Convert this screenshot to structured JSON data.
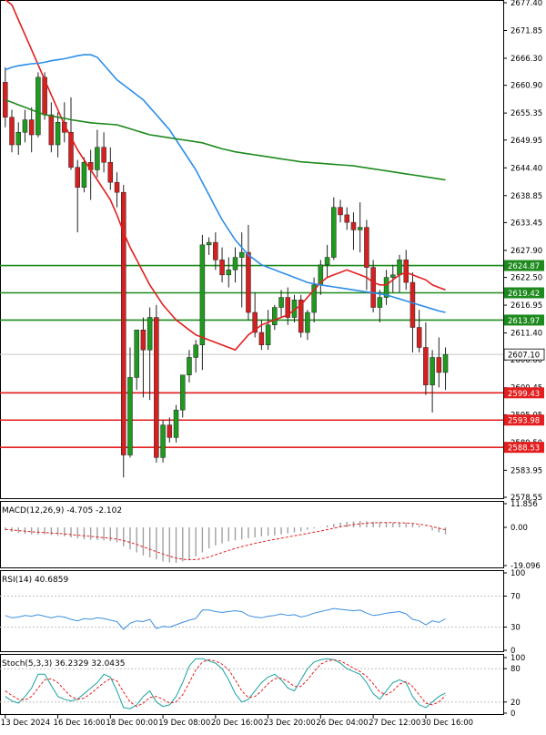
{
  "chart_data": {
    "type": "candlestick",
    "price_panel": {
      "ylim": [
        2578.55,
        2677.4
      ],
      "y_ticks": [
        "2677.40",
        "2671.85",
        "2666.30",
        "2660.90",
        "2655.35",
        "2649.95",
        "2644.40",
        "2638.85",
        "2633.45",
        "2627.90",
        "2622.50",
        "2616.95",
        "2611.40",
        "2606.00",
        "2600.45",
        "2595.05",
        "2589.50",
        "2583.95",
        "2578.55"
      ],
      "current_price": "2607.10",
      "x_ticks": [
        {
          "i": 0,
          "label": "13 Dec 2024"
        },
        {
          "i": 8,
          "label": "16 Dec 16:00"
        },
        {
          "i": 16,
          "label": "18 Dec 00:00"
        },
        {
          "i": 24,
          "label": "19 Dec 08:00"
        },
        {
          "i": 32,
          "label": "20 Dec 16:00"
        },
        {
          "i": 40,
          "label": "23 Dec 20:00"
        },
        {
          "i": 48,
          "label": "26 Dec 04:00"
        },
        {
          "i": 56,
          "label": "27 Dec 12:00"
        },
        {
          "i": 64,
          "label": "30 Dec 16:00"
        }
      ],
      "ohlc": [
        [
          2661.5,
          2664.5,
          2652.5,
          2654.5
        ],
        [
          2654.5,
          2656,
          2647.5,
          2649
        ],
        [
          2649,
          2653.5,
          2647,
          2651.5
        ],
        [
          2651.5,
          2656,
          2649.5,
          2654
        ],
        [
          2654,
          2656.5,
          2647.5,
          2651
        ],
        [
          2651,
          2663.5,
          2650.5,
          2662.5
        ],
        [
          2662.5,
          2663.5,
          2654,
          2655
        ],
        [
          2655,
          2657.5,
          2647.5,
          2649
        ],
        [
          2649,
          2655.5,
          2646.5,
          2653.5
        ],
        [
          2653.5,
          2657.5,
          2649.5,
          2651.5
        ],
        [
          2651.5,
          2658.5,
          2644,
          2644.5
        ],
        [
          2644.5,
          2646,
          2631.5,
          2640.5
        ],
        [
          2640.5,
          2646.5,
          2639.5,
          2645.5
        ],
        [
          2645.5,
          2648,
          2638,
          2644
        ],
        [
          2644,
          2652,
          2642.5,
          2648.5
        ],
        [
          2648.5,
          2651.5,
          2643.5,
          2645.5
        ],
        [
          2645.5,
          2648.5,
          2640,
          2641.5
        ],
        [
          2641.5,
          2643.5,
          2636.5,
          2639.5
        ],
        [
          2639.5,
          2641,
          2582.5,
          2587
        ],
        [
          2587,
          2608.5,
          2586.5,
          2602.5
        ],
        [
          2602.5,
          2612,
          2600,
          2612
        ],
        [
          2612,
          2614.5,
          2598.5,
          2608
        ],
        [
          2608,
          2616.5,
          2598,
          2614.5
        ],
        [
          2614.5,
          2617,
          2585.5,
          2586.5
        ],
        [
          2586.5,
          2594,
          2585.5,
          2593
        ],
        [
          2593,
          2594.5,
          2589.5,
          2590.5
        ],
        [
          2590.5,
          2597,
          2589.5,
          2596
        ],
        [
          2596,
          2603,
          2594.5,
          2603
        ],
        [
          2603,
          2608,
          2601.5,
          2606.5
        ],
        [
          2606.5,
          2610,
          2603.5,
          2609
        ],
        [
          2609,
          2631,
          2604,
          2629
        ],
        [
          2629,
          2630.5,
          2627,
          2629.5
        ],
        [
          2629.5,
          2631.5,
          2624,
          2626
        ],
        [
          2626,
          2628.5,
          2621.5,
          2623
        ],
        [
          2623,
          2626.5,
          2620.5,
          2624
        ],
        [
          2624,
          2628.5,
          2621.5,
          2626.5
        ],
        [
          2626.5,
          2631.5,
          2616.5,
          2627.5
        ],
        [
          2627.5,
          2633,
          2614,
          2615.5
        ],
        [
          2615.5,
          2619.5,
          2610.5,
          2611.5
        ],
        [
          2611.5,
          2614,
          2608,
          2609
        ],
        [
          2609,
          2616,
          2608,
          2613
        ],
        [
          2613,
          2617,
          2612,
          2616.5
        ],
        [
          2616.5,
          2620,
          2614.5,
          2618.5
        ],
        [
          2618.5,
          2620.5,
          2613,
          2614.5
        ],
        [
          2614.5,
          2619,
          2613.5,
          2618
        ],
        [
          2618,
          2619,
          2610.5,
          2611.5
        ],
        [
          2611.5,
          2616,
          2610,
          2615.5
        ],
        [
          2615.5,
          2622.5,
          2613.5,
          2621
        ],
        [
          2621,
          2626,
          2619,
          2625
        ],
        [
          2625,
          2629,
          2622.5,
          2626.5
        ],
        [
          2626.5,
          2638.5,
          2626,
          2636.5
        ],
        [
          2636.5,
          2638,
          2633.5,
          2635
        ],
        [
          2635,
          2636.5,
          2632,
          2633.5
        ],
        [
          2633.5,
          2635.5,
          2628,
          2632
        ],
        [
          2632,
          2637.5,
          2627.5,
          2632.5
        ],
        [
          2632.5,
          2634,
          2620,
          2624.5
        ],
        [
          2624.5,
          2626,
          2615.5,
          2616.5
        ],
        [
          2616.5,
          2620,
          2613.5,
          2618.5
        ],
        [
          2618.5,
          2624,
          2617,
          2622.5
        ],
        [
          2622.5,
          2625,
          2619.5,
          2623
        ],
        [
          2623,
          2627,
          2619.5,
          2626
        ],
        [
          2626,
          2628,
          2620,
          2621.5
        ],
        [
          2621.5,
          2623.5,
          2607.5,
          2612.5
        ],
        [
          2612.5,
          2616,
          2607.5,
          2608.5
        ],
        [
          2608.5,
          2613.5,
          2599,
          2601
        ],
        [
          2601,
          2608,
          2595.5,
          2606.5
        ],
        [
          2606.5,
          2610.5,
          2600.5,
          2603.5
        ],
        [
          2603.5,
          2608.5,
          2600,
          2607.1
        ]
      ],
      "moving_averages": [
        {
          "color": "#e41e1e",
          "values": [
            2678,
            2677,
            2674,
            2671,
            2668,
            2665,
            2662,
            2659,
            2656,
            2653,
            2650.5,
            2648,
            2646,
            2644,
            2642,
            2640,
            2638,
            2635,
            2631.5,
            2628.5,
            2626,
            2623.5,
            2621,
            2619,
            2617,
            2615.5,
            2614,
            2613,
            2612,
            2611,
            2610.5,
            2610,
            2609.5,
            2609,
            2608.5,
            2608,
            2609.5,
            2611,
            2612,
            2613,
            2613.5,
            2614,
            2614.5,
            2615,
            2616,
            2617,
            2618.5,
            2620,
            2621.5,
            2622.5,
            2623,
            2623.5,
            2624,
            2623.5,
            2623,
            2622.5,
            2621.5,
            2621,
            2621,
            2622,
            2623,
            2623.5,
            2623,
            2622.5,
            2622,
            2621,
            2620.5,
            2620
          ]
        },
        {
          "color": "#2d8ee8",
          "values": [
            2664,
            2664.5,
            2664.8,
            2665,
            2665.2,
            2665.3,
            2665.5,
            2665.8,
            2666,
            2666.2,
            2666.5,
            2666.8,
            2667,
            2667,
            2666.5,
            2665,
            2663.5,
            2662,
            2661,
            2660,
            2659,
            2658,
            2656.5,
            2655,
            2653.5,
            2652,
            2650,
            2648,
            2646,
            2644,
            2641.5,
            2639,
            2636.5,
            2634,
            2632,
            2630,
            2628.5,
            2627,
            2626,
            2625,
            2624.5,
            2624,
            2623.5,
            2623,
            2622.5,
            2622,
            2621.5,
            2621.2,
            2621,
            2620.8,
            2620.6,
            2620.4,
            2620.2,
            2620,
            2619.8,
            2619.6,
            2619.4,
            2619.2,
            2619,
            2618.6,
            2618.2,
            2617.8,
            2617.4,
            2617,
            2616.6,
            2616.2,
            2615.8,
            2615.5
          ]
        },
        {
          "color": "#1e8a1e",
          "values": [
            2658,
            2657.5,
            2657,
            2656.5,
            2656,
            2655.5,
            2655,
            2654.8,
            2654.5,
            2654.3,
            2654,
            2653.8,
            2653.6,
            2653.4,
            2653.3,
            2653.2,
            2653.1,
            2653,
            2652.6,
            2652.2,
            2651.8,
            2651.4,
            2651,
            2650.8,
            2650.6,
            2650.4,
            2650.2,
            2650,
            2649.8,
            2649.6,
            2649.4,
            2649,
            2648.6,
            2648.2,
            2647.9,
            2647.6,
            2647.4,
            2647.2,
            2647,
            2646.8,
            2646.6,
            2646.4,
            2646.2,
            2646,
            2645.8,
            2645.6,
            2645.5,
            2645.4,
            2645.3,
            2645.2,
            2645.1,
            2645,
            2644.9,
            2644.8,
            2644.6,
            2644.4,
            2644.2,
            2644,
            2643.8,
            2643.6,
            2643.4,
            2643.2,
            2643,
            2642.8,
            2642.6,
            2642.4,
            2642.2,
            2642
          ]
        }
      ],
      "h_lines": [
        {
          "value": 2624.87,
          "label": "2624.87",
          "color": "#1e8a1e"
        },
        {
          "value": 2619.42,
          "label": "2619.42",
          "color": "#1e8a1e"
        },
        {
          "value": 2613.97,
          "label": "2613.97",
          "color": "#1e8a1e"
        },
        {
          "value": 2599.43,
          "label": "2599.43",
          "color": "#e41e1e"
        },
        {
          "value": 2593.98,
          "label": "2593.98",
          "color": "#e41e1e"
        },
        {
          "value": 2588.53,
          "label": "2588.53",
          "color": "#e41e1e"
        }
      ]
    },
    "macd_panel": {
      "label": "MACD(12,26,9) -4.705 -2.102",
      "y_ticks": [
        {
          "value": 11.856,
          "label": "11.856"
        },
        {
          "value": 0,
          "label": "0.00"
        },
        {
          "value": -19.096,
          "label": "-19.096"
        }
      ],
      "histogram": [
        -1.5,
        -2.2,
        -2.8,
        -3.2,
        -3.5,
        -3.6,
        -3.5,
        -3.8,
        -4.2,
        -4.5,
        -5,
        -5.5,
        -6,
        -6.2,
        -6.3,
        -6.5,
        -6.8,
        -7.5,
        -9.5,
        -11,
        -12.5,
        -14,
        -15,
        -16,
        -17,
        -17.5,
        -17.8,
        -17,
        -16,
        -14.5,
        -12.5,
        -10.5,
        -9,
        -8,
        -7,
        -6.5,
        -6,
        -5.5,
        -5,
        -4.5,
        -4.2,
        -4,
        -3.5,
        -3,
        -2.5,
        -2,
        -1.2,
        -0.5,
        0.2,
        1,
        1.8,
        2.4,
        2.8,
        3,
        3.2,
        3,
        2.8,
        2.6,
        2.5,
        2.4,
        2.3,
        2.2,
        1.8,
        1,
        0,
        -1.5,
        -2.5,
        -3.5
      ],
      "signal": [
        -1,
        -1.3,
        -1.6,
        -1.9,
        -2.2,
        -2.4,
        -2.6,
        -2.8,
        -3,
        -3.3,
        -3.6,
        -3.9,
        -4.2,
        -4.5,
        -4.8,
        -5.1,
        -5.4,
        -5.9,
        -6.6,
        -7.5,
        -8.5,
        -9.7,
        -10.9,
        -12.1,
        -13.3,
        -14.4,
        -15.3,
        -15.9,
        -16.2,
        -16.1,
        -15.6,
        -14.8,
        -13.7,
        -12.6,
        -11.5,
        -10.5,
        -9.6,
        -8.8,
        -8,
        -7.3,
        -6.6,
        -6,
        -5.4,
        -4.8,
        -4.2,
        -3.6,
        -3,
        -2.4,
        -1.8,
        -1.1,
        -0.4,
        0.3,
        0.9,
        1.4,
        1.8,
        2.1,
        2.3,
        2.4,
        2.4,
        2.4,
        2.3,
        2.2,
        2,
        1.6,
        1.1,
        0.4,
        -0.4,
        -1.2
      ]
    },
    "rsi_panel": {
      "label": "RSI(14) 40.6859",
      "y_ticks": [
        {
          "value": 100,
          "label": "100"
        },
        {
          "value": 70,
          "label": "70"
        },
        {
          "value": 30,
          "label": "30"
        },
        {
          "value": 0,
          "label": "0"
        }
      ],
      "values": [
        45,
        42,
        43,
        45,
        44,
        46,
        44,
        42,
        44,
        43,
        40,
        38,
        41,
        40,
        42,
        41,
        39,
        37,
        27,
        35,
        38,
        37,
        40,
        28,
        31,
        30,
        33,
        36,
        39,
        41,
        52,
        52,
        50,
        49,
        50,
        51,
        50,
        45,
        43,
        42,
        44,
        45,
        47,
        45,
        46,
        43,
        45,
        48,
        50,
        52,
        54,
        53,
        52,
        51,
        52,
        48,
        45,
        46,
        48,
        49,
        50,
        47,
        40,
        38,
        33,
        38,
        36,
        40.7
      ]
    },
    "stoch_panel": {
      "label": "Stoch(5,3,3) 36.2329 32.0435",
      "y_ticks": [
        {
          "value": 100,
          "label": "100"
        },
        {
          "value": 80,
          "label": "80"
        },
        {
          "value": 20,
          "label": "20"
        },
        {
          "value": 0,
          "label": "0"
        }
      ],
      "k": [
        30,
        22,
        18,
        30,
        45,
        70,
        70,
        50,
        30,
        25,
        22,
        25,
        35,
        45,
        55,
        70,
        65,
        40,
        10,
        8,
        15,
        30,
        40,
        20,
        12,
        15,
        30,
        55,
        85,
        98,
        98,
        94,
        90,
        80,
        60,
        35,
        20,
        25,
        40,
        55,
        65,
        70,
        60,
        45,
        40,
        60,
        80,
        92,
        96,
        98,
        96,
        90,
        80,
        75,
        70,
        55,
        35,
        25,
        40,
        55,
        60,
        55,
        30,
        15,
        10,
        20,
        30,
        36.2
      ],
      "d": [
        40,
        32,
        25,
        24,
        30,
        45,
        60,
        62,
        55,
        42,
        30,
        25,
        27,
        35,
        45,
        55,
        62,
        58,
        38,
        20,
        12,
        18,
        28,
        30,
        25,
        18,
        20,
        33,
        55,
        78,
        92,
        96,
        94,
        88,
        78,
        60,
        40,
        28,
        30,
        40,
        53,
        62,
        63,
        57,
        48,
        48,
        60,
        75,
        88,
        94,
        96,
        94,
        88,
        81,
        75,
        66,
        53,
        38,
        33,
        40,
        52,
        57,
        48,
        33,
        18,
        15,
        20,
        32
      ]
    }
  }
}
